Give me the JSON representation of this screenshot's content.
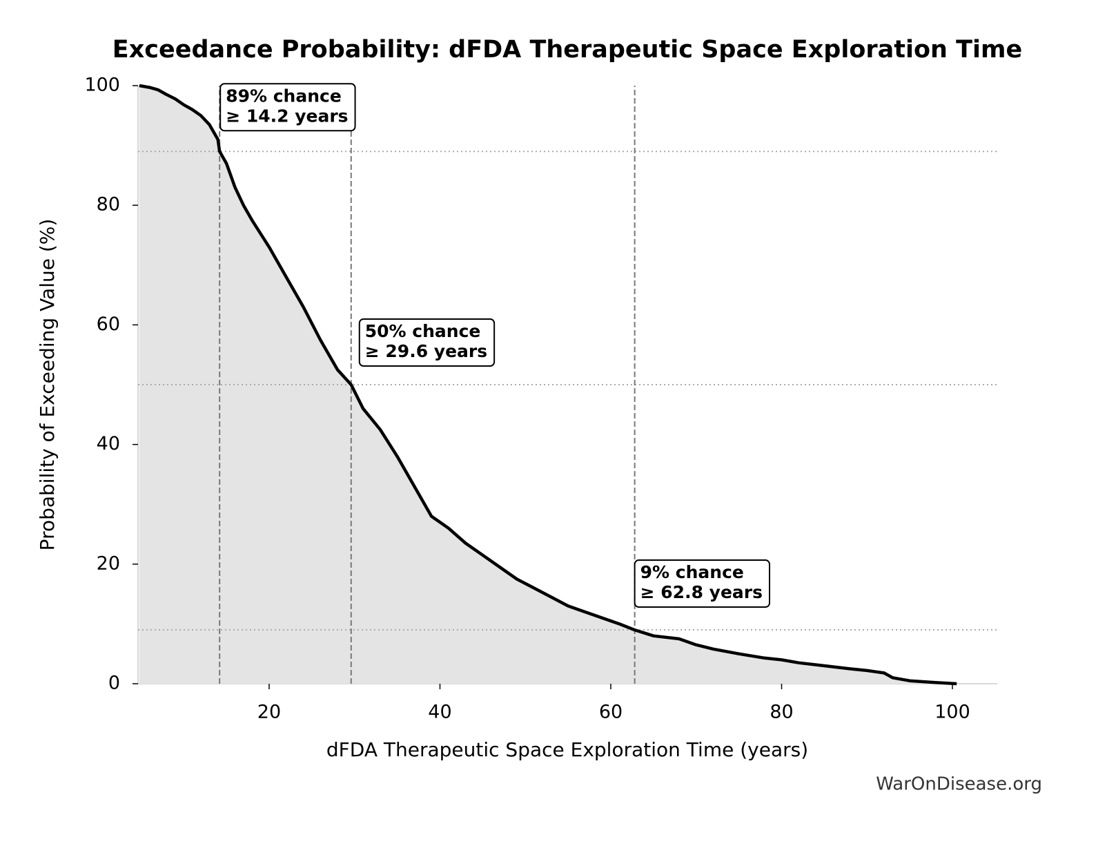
{
  "chart_data": {
    "type": "line",
    "title": "Exceedance Probability: dFDA Therapeutic Space Exploration Time",
    "x_label": "dFDA Therapeutic Space Exploration Time (years)",
    "y_label": "Probability of Exceeding Value (%)",
    "footer": "WarOnDisease.org",
    "xlim": [
      4.65,
      105.25
    ],
    "ylim": [
      0,
      100
    ],
    "xticks": [
      20,
      40,
      60,
      80,
      100
    ],
    "yticks": [
      0,
      20,
      40,
      60,
      80,
      100
    ],
    "series": [
      {
        "color": "#000000",
        "fill": "#e4e4e4",
        "x": [
          4.8,
          6,
          7,
          8,
          9,
          10,
          11,
          12,
          13,
          14,
          14.2,
          15,
          16,
          17,
          18,
          20,
          22,
          24,
          26,
          28,
          29.6,
          31,
          33,
          35,
          37,
          39,
          41,
          43,
          45,
          47,
          49,
          51,
          53,
          55,
          57,
          59,
          61,
          62.8,
          65,
          68,
          70,
          72,
          75,
          78,
          80,
          82,
          85,
          88,
          90,
          92,
          93,
          95,
          98,
          100.5
        ],
        "values": [
          100,
          99.7,
          99.3,
          98.5,
          97.8,
          96.8,
          96,
          95,
          93.5,
          91,
          89,
          87,
          83,
          80,
          77.5,
          73,
          68,
          63,
          57.5,
          52.5,
          50,
          46,
          42.5,
          38,
          33,
          28,
          26,
          23.5,
          21.5,
          19.5,
          17.5,
          16,
          14.5,
          13,
          12,
          11,
          10,
          9,
          8,
          7.5,
          6.5,
          5.8,
          5,
          4.3,
          4,
          3.5,
          3,
          2.5,
          2.2,
          1.8,
          1,
          0.5,
          0.2,
          0
        ]
      }
    ],
    "annotations": [
      {
        "x": 14.2,
        "probability": 89,
        "lines": [
          "89% chance",
          "≥ 14.2 years"
        ]
      },
      {
        "x": 29.6,
        "probability": 50,
        "lines": [
          "50% chance",
          "≥ 29.6 years"
        ]
      },
      {
        "x": 62.8,
        "probability": 9,
        "lines": [
          "9% chance",
          "≥ 62.8 years"
        ]
      }
    ]
  }
}
